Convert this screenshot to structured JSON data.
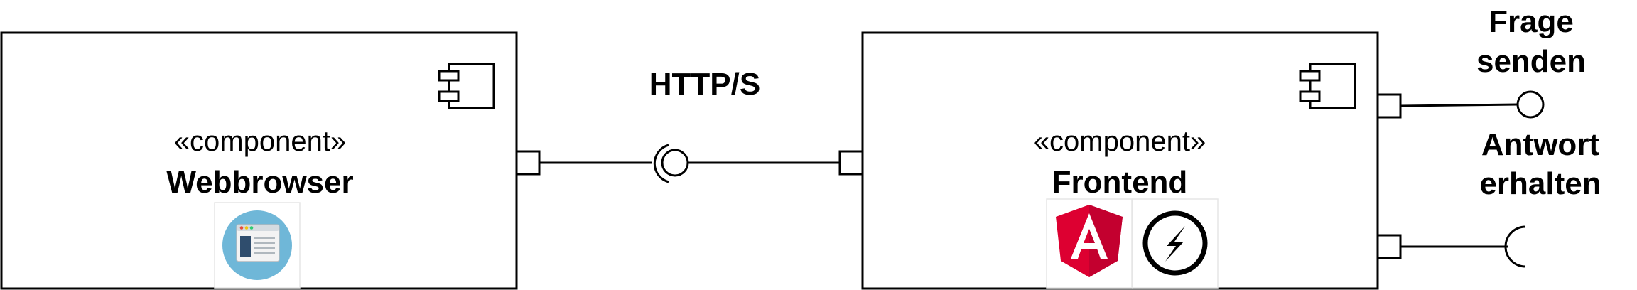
{
  "connection": {
    "protocol": "HTTP/S"
  },
  "components": [
    {
      "stereotype": "«component»",
      "name": "Webbrowser",
      "icons": [
        "browser-window-icon"
      ]
    },
    {
      "stereotype": "«component»",
      "name": "Frontend",
      "icons": [
        "angular-logo-icon",
        "socket-io-logo-icon"
      ]
    }
  ],
  "interfaces": {
    "provided": {
      "line1": "Frage",
      "line2": "senden"
    },
    "required": {
      "line1": "Antwort",
      "line2": "erhalten"
    }
  },
  "colors": {
    "stroke": "#000000",
    "angular_red": "#dd0031",
    "angular_dark": "#c3002f",
    "browser_circle": "#6fb7d8"
  }
}
